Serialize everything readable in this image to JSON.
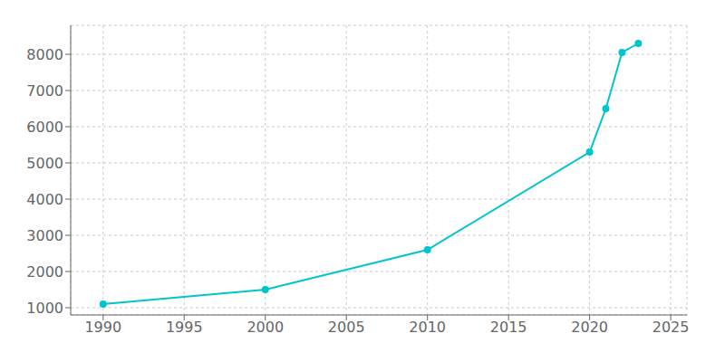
{
  "chart_data": {
    "type": "line",
    "x": [
      1990,
      2000,
      2010,
      2020,
      2021,
      2022,
      2023
    ],
    "values": [
      1100,
      1500,
      2600,
      5300,
      6500,
      8050,
      8300
    ],
    "color": "#00c5cd",
    "marker": "circle",
    "xlim": [
      1988,
      2026
    ],
    "ylim": [
      800,
      8800
    ],
    "xticks": [
      1990,
      1995,
      2000,
      2005,
      2010,
      2015,
      2020,
      2025
    ],
    "yticks": [
      1000,
      2000,
      3000,
      4000,
      5000,
      6000,
      7000,
      8000
    ],
    "grid": true
  }
}
